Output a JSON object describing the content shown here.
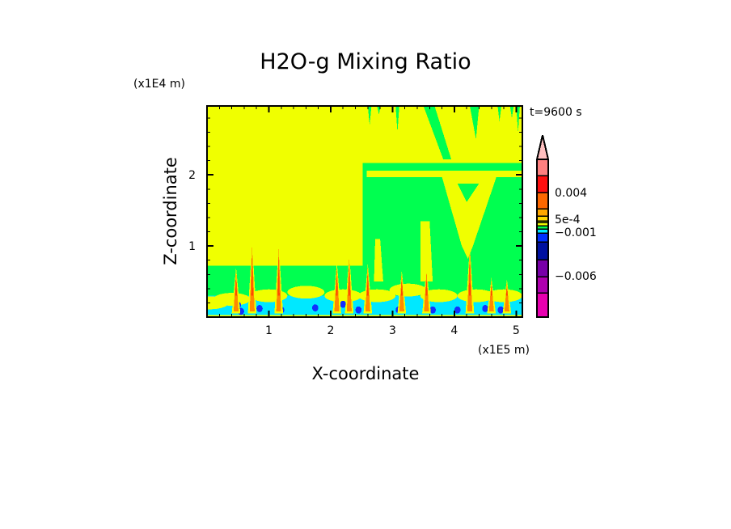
{
  "chart_data": {
    "type": "heatmap",
    "subtype": "filled-contour",
    "title": "H2O-g Mixing Ratio",
    "xlabel": "X-coordinate",
    "ylabel": "Z-coordinate",
    "x_unit": "(x1E5 m)",
    "y_unit": "(x1E4 m)",
    "time_label": "t=9600 s",
    "xlim": [
      0,
      5.1
    ],
    "ylim": [
      0,
      2.97
    ],
    "x_ticks": [
      1,
      2,
      3,
      4,
      5
    ],
    "x_tick_labels": [
      "1",
      "2",
      "3",
      "4",
      "5"
    ],
    "y_ticks": [
      1,
      2
    ],
    "y_tick_labels": [
      "1",
      "2"
    ],
    "grid": false,
    "colorbar": {
      "position": "right",
      "extend": "max",
      "labels": [
        {
          "value": 0.004,
          "text": "0.004"
        },
        {
          "value": 0.0005,
          "text": "5e-4"
        },
        {
          "value": -0.001,
          "text": "-0.001"
        },
        {
          "value": -0.006,
          "text": "-0.006"
        }
      ],
      "colors_top_to_bottom": [
        "#ffc0c0",
        "#ff8080",
        "#ff1010",
        "#ff6800",
        "#ffa800",
        "#ffd800",
        "#f0ff00",
        "#f0ff00",
        "#00ff50",
        "#00e8ff",
        "#0030ff",
        "#0010a0",
        "#7800a8",
        "#b000b0",
        "#e800b0"
      ]
    },
    "regions_description_colors": {
      "background": "#00ff50",
      "moist": "#f0ff00",
      "low": "#00e8ff",
      "lower": "#1030ff",
      "spike": "#ff8800",
      "spike_core": "#ff4800"
    }
  }
}
